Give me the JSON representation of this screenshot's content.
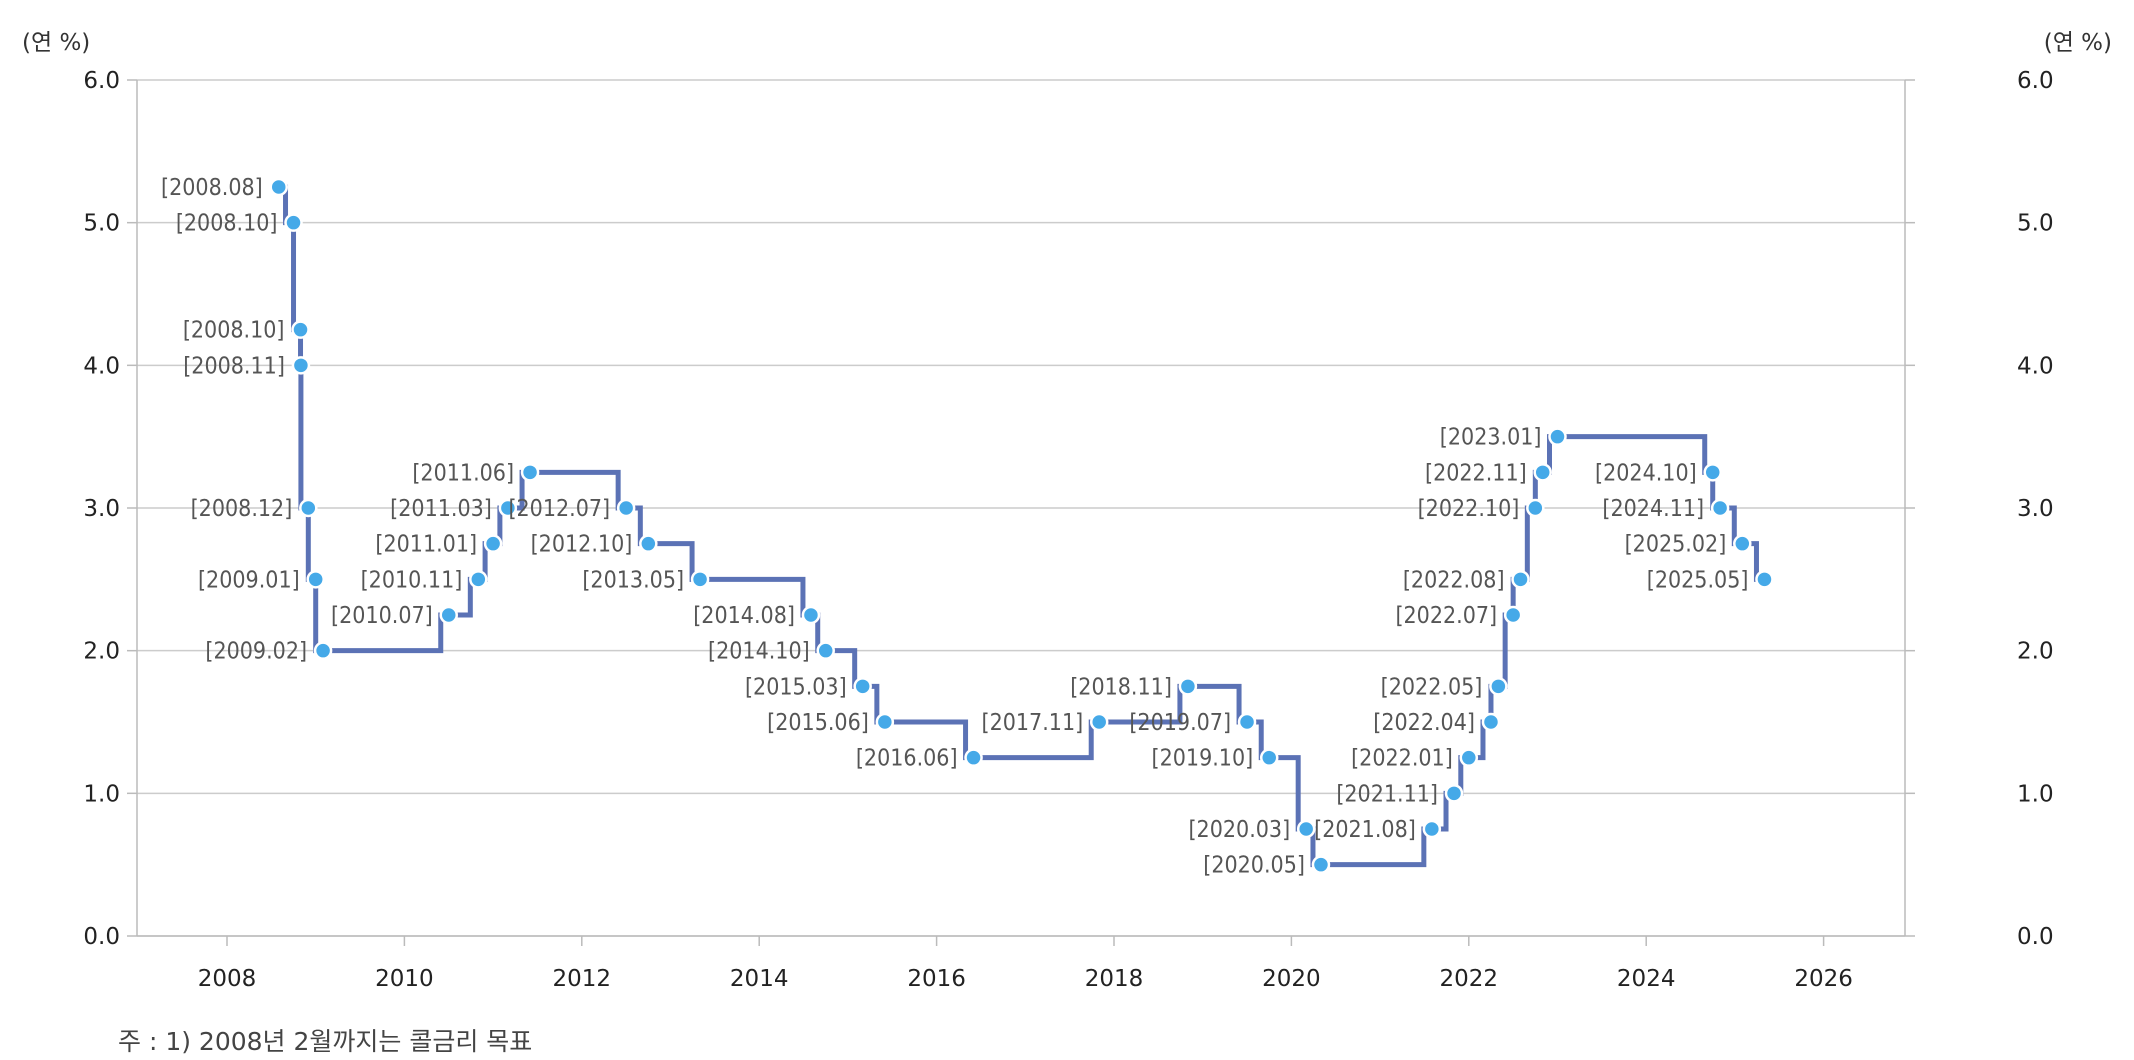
{
  "chart_data": {
    "type": "line",
    "step": true,
    "y_unit_left": "(연 %)",
    "y_unit_right": "(연 %)",
    "ylim": [
      0,
      6
    ],
    "yticks": [
      "0.0",
      "1.0",
      "2.0",
      "3.0",
      "4.0",
      "5.0",
      "6.0"
    ],
    "xlim": [
      2007,
      2027
    ],
    "xticks": [
      "2008",
      "2010",
      "2012",
      "2014",
      "2016",
      "2018",
      "2020",
      "2022",
      "2024",
      "2026"
    ],
    "grid": true,
    "colors": {
      "line": "#5b72b5",
      "marker": "#45a9e8",
      "grid": "#cccccc"
    },
    "points": [
      {
        "label": "[2008.08]",
        "date": "2008.08",
        "value": 5.25
      },
      {
        "label": "[2008.10]",
        "date": "2008.10",
        "value": 5.0
      },
      {
        "label": "[2008.10]",
        "date": "2008.10",
        "value": 4.25
      },
      {
        "label": "[2008.11]",
        "date": "2008.11",
        "value": 4.0
      },
      {
        "label": "[2008.12]",
        "date": "2008.12",
        "value": 3.0
      },
      {
        "label": "[2009.01]",
        "date": "2009.01",
        "value": 2.5
      },
      {
        "label": "[2009.02]",
        "date": "2009.02",
        "value": 2.0
      },
      {
        "label": "[2010.07]",
        "date": "2010.07",
        "value": 2.25
      },
      {
        "label": "[2010.11]",
        "date": "2010.11",
        "value": 2.5
      },
      {
        "label": "[2011.01]",
        "date": "2011.01",
        "value": 2.75
      },
      {
        "label": "[2011.03]",
        "date": "2011.03",
        "value": 3.0
      },
      {
        "label": "[2011.06]",
        "date": "2011.06",
        "value": 3.25
      },
      {
        "label": "[2012.07]",
        "date": "2012.07",
        "value": 3.0
      },
      {
        "label": "[2012.10]",
        "date": "2012.10",
        "value": 2.75
      },
      {
        "label": "[2013.05]",
        "date": "2013.05",
        "value": 2.5
      },
      {
        "label": "[2014.08]",
        "date": "2014.08",
        "value": 2.25
      },
      {
        "label": "[2014.10]",
        "date": "2014.10",
        "value": 2.0
      },
      {
        "label": "[2015.03]",
        "date": "2015.03",
        "value": 1.75
      },
      {
        "label": "[2015.06]",
        "date": "2015.06",
        "value": 1.5
      },
      {
        "label": "[2016.06]",
        "date": "2016.06",
        "value": 1.25
      },
      {
        "label": "[2017.11]",
        "date": "2017.11",
        "value": 1.5
      },
      {
        "label": "[2018.11]",
        "date": "2018.11",
        "value": 1.75
      },
      {
        "label": "[2019.07]",
        "date": "2019.07",
        "value": 1.5
      },
      {
        "label": "[2019.10]",
        "date": "2019.10",
        "value": 1.25
      },
      {
        "label": "[2020.03]",
        "date": "2020.03",
        "value": 0.75
      },
      {
        "label": "[2020.05]",
        "date": "2020.05",
        "value": 0.5
      },
      {
        "label": "[2021.08]",
        "date": "2021.08",
        "value": 0.75
      },
      {
        "label": "[2021.11]",
        "date": "2021.11",
        "value": 1.0
      },
      {
        "label": "[2022.01]",
        "date": "2022.01",
        "value": 1.25
      },
      {
        "label": "[2022.04]",
        "date": "2022.04",
        "value": 1.5
      },
      {
        "label": "[2022.05]",
        "date": "2022.05",
        "value": 1.75
      },
      {
        "label": "[2022.07]",
        "date": "2022.07",
        "value": 2.25
      },
      {
        "label": "[2022.08]",
        "date": "2022.08",
        "value": 2.5
      },
      {
        "label": "[2022.10]",
        "date": "2022.10",
        "value": 3.0
      },
      {
        "label": "[2022.11]",
        "date": "2022.11",
        "value": 3.25
      },
      {
        "label": "[2023.01]",
        "date": "2023.01",
        "value": 3.5
      },
      {
        "label": "[2024.10]",
        "date": "2024.10",
        "value": 3.25
      },
      {
        "label": "[2024.11]",
        "date": "2024.11",
        "value": 3.0
      },
      {
        "label": "[2025.02]",
        "date": "2025.02",
        "value": 2.75
      },
      {
        "label": "[2025.05]",
        "date": "2025.05",
        "value": 2.5
      }
    ]
  },
  "note": "주 : 1) 2008년 2월까지는 콜금리 목표"
}
